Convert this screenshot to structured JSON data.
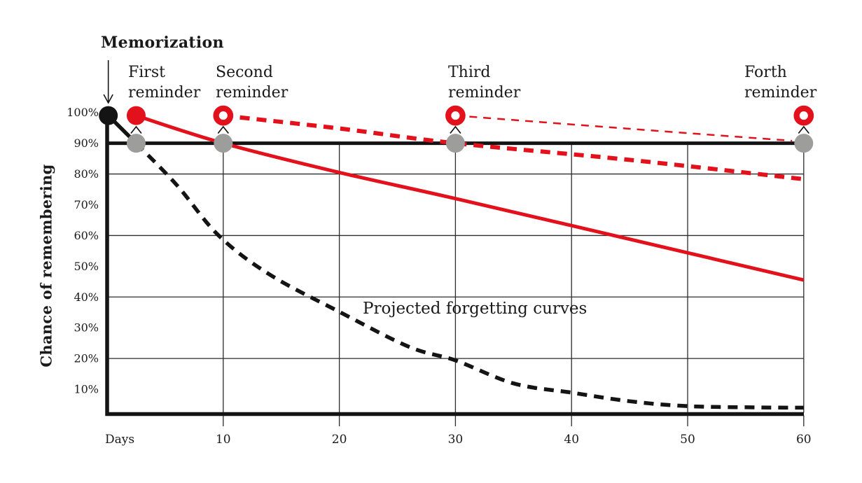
{
  "chart_data": {
    "type": "line",
    "title": "",
    "xlabel": "Days",
    "ylabel": "Chance of remembering",
    "xlim": [
      0,
      60
    ],
    "ylim": [
      0,
      100
    ],
    "grid": true,
    "legend_position": "none",
    "annotation": "Projected forgetting curves",
    "x_ticks": [
      {
        "value": 10,
        "label": "10"
      },
      {
        "value": 20,
        "label": "20"
      },
      {
        "value": 30,
        "label": "30"
      },
      {
        "value": 40,
        "label": "40"
      },
      {
        "value": 50,
        "label": "50"
      },
      {
        "value": 60,
        "label": "60"
      }
    ],
    "y_ticks": [
      {
        "value": 100,
        "label": "100%"
      },
      {
        "value": 90,
        "label": "90%"
      },
      {
        "value": 80,
        "label": "80%"
      },
      {
        "value": 70,
        "label": "70%"
      },
      {
        "value": 60,
        "label": "60%"
      },
      {
        "value": 50,
        "label": "50%"
      },
      {
        "value": 40,
        "label": "40%"
      },
      {
        "value": 30,
        "label": "30%"
      },
      {
        "value": 20,
        "label": "20%"
      },
      {
        "value": 10,
        "label": "10%"
      }
    ],
    "h_gridlines_at": [
      80,
      60,
      40,
      20
    ],
    "retention_threshold_pct": 90,
    "series": [
      {
        "name": "memorization-drop",
        "color_key": "black",
        "dash": "solid",
        "width": 5.5,
        "smooth": false,
        "points": [
          [
            0.1,
            99
          ],
          [
            2.5,
            90
          ]
        ]
      },
      {
        "name": "forgetting-curve-no-reminder",
        "color_key": "black",
        "dash": "dashed",
        "width": 5.5,
        "smooth": true,
        "points": [
          [
            2.5,
            90
          ],
          [
            6,
            76.4
          ],
          [
            9.6,
            60
          ],
          [
            14,
            47.3
          ],
          [
            20,
            35.2
          ],
          [
            26,
            23.8
          ],
          [
            30,
            19.4
          ],
          [
            35,
            11.9
          ],
          [
            40,
            8.9
          ],
          [
            45,
            6.1
          ],
          [
            50,
            4.5
          ],
          [
            56,
            4.1
          ],
          [
            60,
            4
          ]
        ]
      },
      {
        "name": "forgetting-curve-after-first-reminder",
        "color_key": "red",
        "dash": "solid",
        "width": 5,
        "smooth": true,
        "points": [
          [
            2.5,
            99
          ],
          [
            10,
            90
          ],
          [
            20,
            80.5
          ],
          [
            30,
            72
          ],
          [
            45,
            58.8
          ],
          [
            60,
            45.5
          ]
        ]
      },
      {
        "name": "forgetting-curve-after-second-reminder",
        "color_key": "red",
        "dash": "dashed",
        "width": 6,
        "smooth": true,
        "points": [
          [
            10,
            99
          ],
          [
            20,
            94.8
          ],
          [
            30,
            90
          ],
          [
            45,
            84.6
          ],
          [
            60,
            78.3
          ]
        ]
      },
      {
        "name": "forgetting-curve-after-third-reminder",
        "color_key": "red",
        "dash": "dashed-thin",
        "width": 2.5,
        "smooth": true,
        "points": [
          [
            30,
            99
          ],
          [
            45,
            94.7
          ],
          [
            59,
            90.8
          ]
        ]
      }
    ],
    "markers": {
      "memorization": {
        "label": "Memorization",
        "day": 0.1,
        "pct": 99,
        "type": "filled-black"
      },
      "reminders": [
        {
          "label_line1": "First",
          "label_line2": "reminder",
          "day": 2.5,
          "pct": 99,
          "type": "filled-red"
        },
        {
          "label_line1": "Second",
          "label_line2": "reminder",
          "day": 10,
          "pct": 99,
          "type": "ring-red"
        },
        {
          "label_line1": "Third",
          "label_line2": "reminder",
          "day": 30,
          "pct": 99,
          "type": "ring-red"
        },
        {
          "label_line1": "Forth",
          "label_line2": "reminder",
          "day": 60,
          "pct": 99,
          "type": "ring-red"
        }
      ],
      "retention_dots": {
        "pct": 90,
        "days": [
          2.5,
          10,
          30,
          60
        ],
        "type": "filled-gray"
      }
    },
    "colors": {
      "red": "#e2111c",
      "black": "#141414",
      "gray": "#9d9d9c",
      "gridline": "#2b2b2b"
    }
  }
}
